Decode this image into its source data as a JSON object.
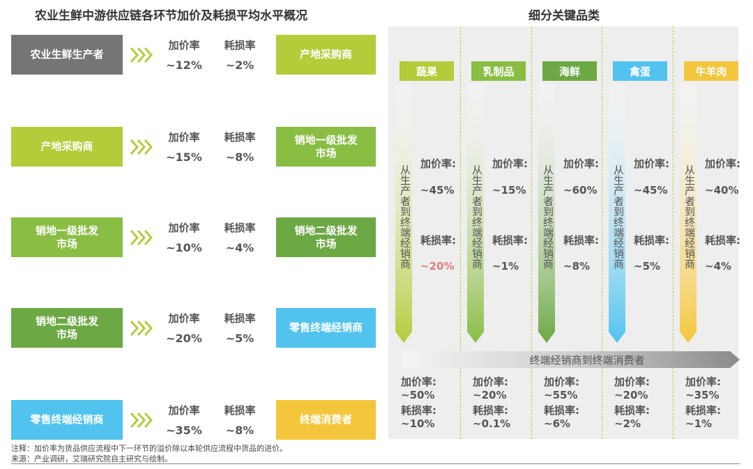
{
  "left_title": "农业生鲜中游供应链各环节加价及耗损平均水平概况",
  "right_title": "细分关键品类",
  "stat_labels": {
    "markup": "加价率",
    "loss": "耗损率"
  },
  "chain": [
    {
      "from": "农业生鲜生产者",
      "to": "产地采购商",
      "markup": "~12%",
      "loss": "~2%",
      "from_color": "#757575",
      "to_color": "#b2cc3a"
    },
    {
      "from": "产地采购商",
      "to": "销地一级批发\n市场",
      "markup": "~15%",
      "loss": "~8%",
      "from_color": "#b2cc3a",
      "to_color": "#8abd44"
    },
    {
      "from": "销地一级批发\n市场",
      "to": "销地二级批发\n市场",
      "markup": "~10%",
      "loss": "~4%",
      "from_color": "#8abd44",
      "to_color": "#6ca844"
    },
    {
      "from": "销地二级批发\n市场",
      "to": "零售终端经销商",
      "markup": "~20%",
      "loss": "~5%",
      "from_color": "#6ca844",
      "to_color": "#51c3ee"
    },
    {
      "from": "零售终端经销商",
      "to": "终端消费者",
      "markup": "~35%",
      "loss": "~8%",
      "from_color": "#51c3ee",
      "to_color": "#f4c63c"
    }
  ],
  "stream_label": "从生产者到终端经销商",
  "category_labels": {
    "markup": "加价率:",
    "loss": "耗损率:"
  },
  "categories": [
    {
      "name": "蔬果",
      "color": "#b2cc3a",
      "markup": "~45%",
      "loss": "~20%",
      "loss_highlight": true,
      "end_markup": "~50%",
      "end_loss": "~10%"
    },
    {
      "name": "乳制品",
      "color": "#8abd44",
      "markup": "~15%",
      "loss": "~1%",
      "loss_highlight": false,
      "end_markup": "~20%",
      "end_loss": "~0.1%"
    },
    {
      "name": "海鲜",
      "color": "#6ca844",
      "markup": "~60%",
      "loss": "~8%",
      "loss_highlight": false,
      "end_markup": "~55%",
      "end_loss": "~6%"
    },
    {
      "name": "禽蛋",
      "color": "#51c3ee",
      "markup": "~45%",
      "loss": "~5%",
      "loss_highlight": false,
      "end_markup": "~20%",
      "end_loss": "~2%"
    },
    {
      "name": "牛羊肉",
      "color": "#f4c63c",
      "markup": "~40%",
      "loss": "~4%",
      "loss_highlight": false,
      "end_markup": "~35%",
      "end_loss": "~1%"
    }
  ],
  "bottom_arrow": "终端经销商到终端消费者",
  "note": "注释：加价率为货品供应流程中下一环节的溢价除以本轮供应流程中货品的进价。",
  "source": "来源：产业调研，艾瑞研究院自主研究与绘制。"
}
